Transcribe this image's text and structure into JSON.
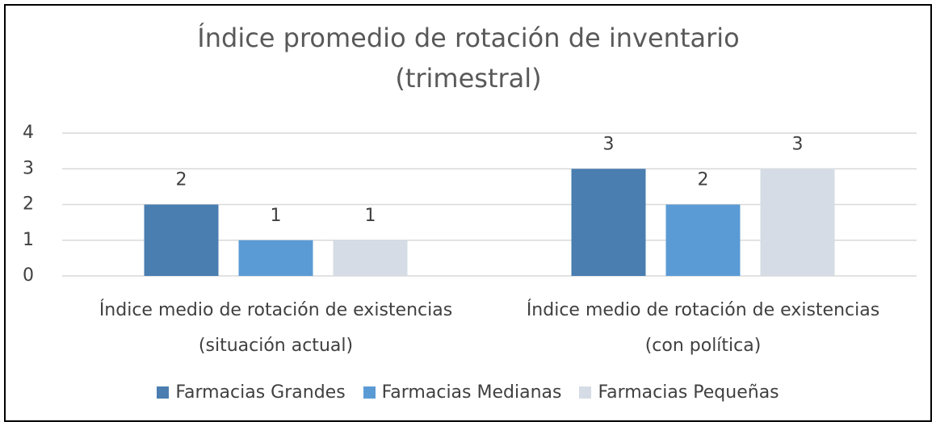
{
  "chart_data": {
    "type": "bar",
    "title": "Índice promedio de rotación de inventario (trimestral)",
    "categories": [
      "Índice medio de rotación de existencias (situación actual)",
      "Índice medio de rotación de existencias (con política)"
    ],
    "series": [
      {
        "name": "Farmacias Grandes",
        "color": "#4a7eb0",
        "values": [
          2,
          3
        ]
      },
      {
        "name": "Farmacias Medianas",
        "color": "#5b9bd5",
        "values": [
          1,
          2
        ]
      },
      {
        "name": "Farmacias Pequeñas",
        "color": "#d6dce5",
        "values": [
          1,
          3
        ]
      }
    ],
    "ylim": [
      0,
      4
    ],
    "yticks": [
      0,
      1,
      2,
      3,
      4
    ],
    "grid": true,
    "legend": "bottom"
  }
}
